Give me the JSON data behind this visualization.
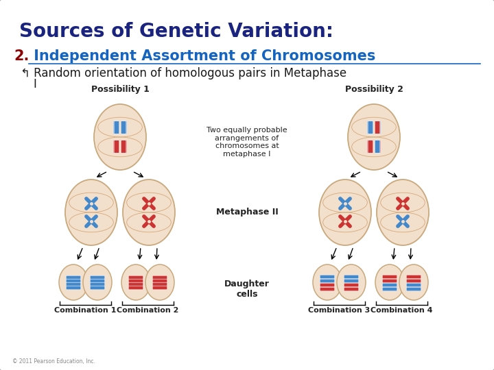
{
  "title": "Sources of Genetic Variation:",
  "title_color": "#1a237e",
  "title_fontsize": 20,
  "subtitle_number": "2.",
  "subtitle_number_color": "#8B0000",
  "subtitle_text": " Independent Assortment of Chromosomes",
  "subtitle_color": "#1565C0",
  "subtitle_fontsize": 15,
  "bullet_fontsize": 12,
  "bullet_color": "#1a1a1a",
  "bg_color": "#ffffff",
  "border_color": "#aaaaaa",
  "cell_fill": "#f2e0cc",
  "cell_edge": "#c9a87c",
  "blue_chr": "#4488cc",
  "red_chr": "#cc3333",
  "label_color": "#222222",
  "label_fontsize": 8,
  "center_text": "Two equally probable\narrangements of\nchromosomes at\nmetaphase I",
  "metaphase2_label": "Metaphase II",
  "daughter_label": "Daughter\ncells",
  "possibility1": "Possibility 1",
  "possibility2": "Possibility 2",
  "combo1": "Combination 1",
  "combo2": "Combination 2",
  "combo3": "Combination 3",
  "combo4": "Combination 4",
  "copyright": "© 2011 Pearson Education, Inc."
}
